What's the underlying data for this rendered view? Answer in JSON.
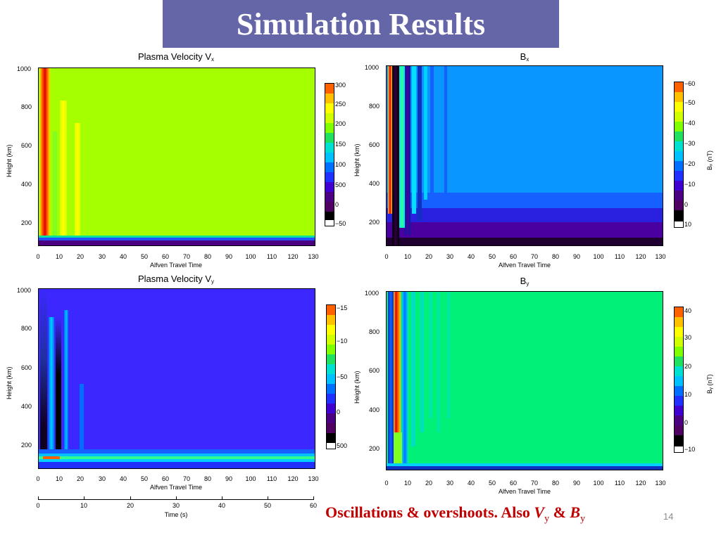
{
  "slide": {
    "title": "Simulation Results",
    "note_text": "Oscillations & overshoots. Also",
    "note_var1": "V",
    "note_sub1": "y",
    "note_amp": "&",
    "note_var2": "B",
    "note_sub2": "y",
    "page_number": "14"
  },
  "panels": {
    "vx": {
      "title": "Plasma Velocity V",
      "title_sub": "x",
      "ylabel": "Height (km)",
      "xlabel": "Alfven Travel Time",
      "yticks": [
        "1000",
        "800",
        "600",
        "400",
        "200"
      ],
      "xticks": [
        "0",
        "10",
        "20",
        "30",
        "40",
        "50",
        "60",
        "70",
        "80",
        "90",
        "100",
        "110",
        "120",
        "130"
      ],
      "cbar_labels": [
        "300",
        "250",
        "200",
        "150",
        "100",
        "500",
        "0",
        "−50"
      ],
      "background": "#a6ff00"
    },
    "bx": {
      "title": "B",
      "title_sub": "x",
      "ylabel": "Height (km)",
      "xlabel": "Alfven Travel Time",
      "yticks": [
        "1000",
        "800",
        "600",
        "400",
        "200"
      ],
      "xticks": [
        "0",
        "10",
        "20",
        "30",
        "40",
        "50",
        "60",
        "70",
        "80",
        "90",
        "100",
        "110",
        "120",
        "130"
      ],
      "cbar_labels": [
        "−60",
        "−50",
        "−40",
        "−30",
        "−20",
        "−10",
        "0",
        "10"
      ],
      "cbar_title": "Bₓ (nT)",
      "background": "#0a96ff"
    },
    "vy": {
      "title": "Plasma Velocity V",
      "title_sub": "y",
      "ylabel": "Height (km)",
      "xlabel": "Alfven Travel Time",
      "yticks": [
        "1000",
        "800",
        "600",
        "400",
        "200"
      ],
      "xticks": [
        "0",
        "10",
        "20",
        "30",
        "40",
        "50",
        "60",
        "70",
        "80",
        "90",
        "100",
        "110",
        "120",
        "130"
      ],
      "cbar_labels": [
        "−15",
        "−10",
        "−50",
        "0",
        "500"
      ],
      "background": "#3c28ff"
    },
    "by": {
      "title": "B",
      "title_sub": "y",
      "ylabel": "Height (km)",
      "xlabel": "Alfven Travel Time",
      "yticks": [
        "1000",
        "800",
        "600",
        "400",
        "200"
      ],
      "xticks": [
        "0",
        "10",
        "20",
        "30",
        "40",
        "50",
        "60",
        "70",
        "80",
        "90",
        "100",
        "110",
        "120",
        "130"
      ],
      "cbar_labels": [
        "40",
        "30",
        "20",
        "10",
        "0",
        "−10"
      ],
      "cbar_title": "Bᵧ (nT)",
      "background": "#00f078"
    }
  },
  "time_axis": {
    "label": "Time (s)",
    "ticks": [
      "0",
      "10",
      "20",
      "30",
      "40",
      "50",
      "60"
    ]
  },
  "colors": {
    "title_bar": "#6566a7",
    "note": "#c00000"
  }
}
